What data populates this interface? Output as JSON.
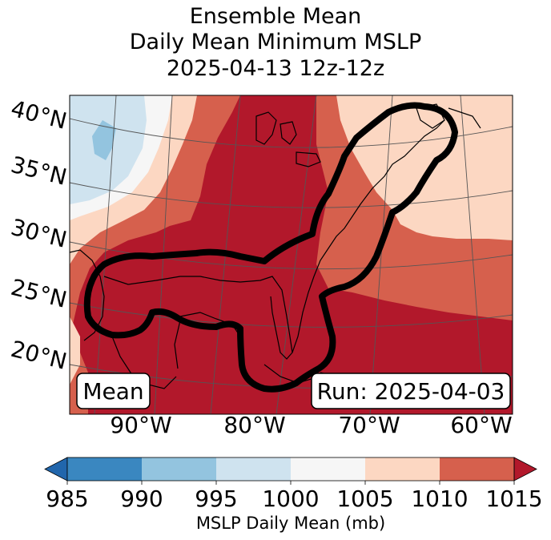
{
  "title": {
    "line1": "Ensemble Mean",
    "line2": "Daily Mean Minimum MSLP",
    "line3": "2025-04-13 12z-12z"
  },
  "map": {
    "lat_labels": [
      "40°N",
      "35°N",
      "30°N",
      "25°N",
      "20°N"
    ],
    "lon_labels": [
      "90°W",
      "80°W",
      "70°W",
      "60°W"
    ],
    "panel_left_label": "Mean",
    "panel_right_label": "Run: 2025-04-03"
  },
  "colorbar": {
    "label": "MSLP Daily Mean (mb)",
    "ticks": [
      "985",
      "990",
      "995",
      "1000",
      "1005",
      "1010",
      "1015"
    ],
    "bins": [
      {
        "range": "985-990",
        "color": "#3a87c0"
      },
      {
        "range": "990-995",
        "color": "#93c4df"
      },
      {
        "range": "995-1000",
        "color": "#cfe3ef"
      },
      {
        "range": "1000-1005",
        "color": "#f6f6f6"
      },
      {
        "range": "1005-1010",
        "color": "#fcd7c2"
      },
      {
        "range": "1010-1015",
        "color": "#d6604d"
      }
    ],
    "under_color": "#2166ac",
    "over_color": "#b2182b"
  }
}
